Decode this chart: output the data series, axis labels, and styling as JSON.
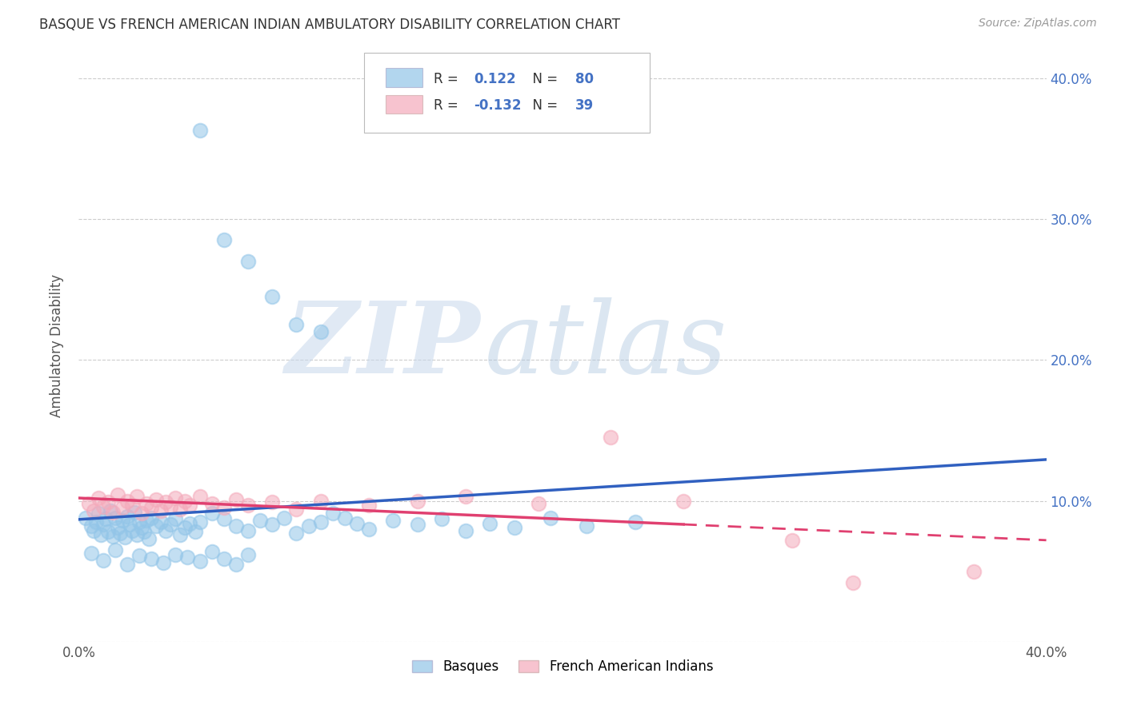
{
  "title": "BASQUE VS FRENCH AMERICAN INDIAN AMBULATORY DISABILITY CORRELATION CHART",
  "source": "Source: ZipAtlas.com",
  "ylabel": "Ambulatory Disability",
  "xlim": [
    0.0,
    0.4
  ],
  "ylim": [
    0.0,
    0.42
  ],
  "grid_color": "#cccccc",
  "background_color": "#ffffff",
  "blue_color": "#92C5E8",
  "pink_color": "#F4AABB",
  "blue_line_color": "#3060C0",
  "pink_line_color": "#E04070",
  "watermark_zip": "ZIP",
  "watermark_atlas": "atlas",
  "legend_label1": "Basques",
  "legend_label2": "French American Indians",
  "blue_x": [
    0.003,
    0.005,
    0.006,
    0.007,
    0.008,
    0.009,
    0.01,
    0.011,
    0.012,
    0.013,
    0.014,
    0.015,
    0.016,
    0.017,
    0.018,
    0.019,
    0.02,
    0.021,
    0.022,
    0.023,
    0.024,
    0.025,
    0.026,
    0.027,
    0.028,
    0.029,
    0.03,
    0.032,
    0.034,
    0.036,
    0.038,
    0.04,
    0.042,
    0.044,
    0.046,
    0.048,
    0.05,
    0.055,
    0.06,
    0.065,
    0.07,
    0.075,
    0.08,
    0.085,
    0.09,
    0.095,
    0.1,
    0.105,
    0.11,
    0.115,
    0.12,
    0.13,
    0.14,
    0.15,
    0.16,
    0.17,
    0.18,
    0.195,
    0.21,
    0.23,
    0.005,
    0.01,
    0.015,
    0.02,
    0.025,
    0.03,
    0.035,
    0.04,
    0.045,
    0.05,
    0.055,
    0.06,
    0.065,
    0.07,
    0.05,
    0.06,
    0.07,
    0.08,
    0.09,
    0.1
  ],
  "blue_y": [
    0.088,
    0.082,
    0.079,
    0.085,
    0.091,
    0.076,
    0.083,
    0.087,
    0.078,
    0.093,
    0.075,
    0.088,
    0.081,
    0.077,
    0.086,
    0.074,
    0.089,
    0.083,
    0.079,
    0.092,
    0.076,
    0.085,
    0.081,
    0.078,
    0.086,
    0.073,
    0.088,
    0.082,
    0.085,
    0.079,
    0.083,
    0.087,
    0.076,
    0.081,
    0.084,
    0.078,
    0.085,
    0.091,
    0.087,
    0.082,
    0.079,
    0.086,
    0.083,
    0.088,
    0.077,
    0.082,
    0.085,
    0.091,
    0.088,
    0.084,
    0.08,
    0.086,
    0.083,
    0.087,
    0.079,
    0.084,
    0.081,
    0.088,
    0.082,
    0.085,
    0.063,
    0.058,
    0.065,
    0.055,
    0.061,
    0.059,
    0.056,
    0.062,
    0.06,
    0.057,
    0.064,
    0.059,
    0.055,
    0.062,
    0.363,
    0.285,
    0.27,
    0.245,
    0.225,
    0.22
  ],
  "pink_x": [
    0.004,
    0.006,
    0.008,
    0.01,
    0.012,
    0.014,
    0.016,
    0.018,
    0.02,
    0.022,
    0.024,
    0.026,
    0.028,
    0.03,
    0.032,
    0.034,
    0.036,
    0.038,
    0.04,
    0.042,
    0.044,
    0.046,
    0.05,
    0.055,
    0.06,
    0.065,
    0.07,
    0.08,
    0.09,
    0.1,
    0.12,
    0.14,
    0.16,
    0.19,
    0.22,
    0.25,
    0.295,
    0.32,
    0.37
  ],
  "pink_y": [
    0.098,
    0.093,
    0.102,
    0.096,
    0.099,
    0.092,
    0.104,
    0.095,
    0.1,
    0.097,
    0.103,
    0.091,
    0.098,
    0.095,
    0.101,
    0.093,
    0.099,
    0.096,
    0.102,
    0.094,
    0.1,
    0.097,
    0.103,
    0.098,
    0.095,
    0.101,
    0.097,
    0.099,
    0.094,
    0.1,
    0.097,
    0.1,
    0.103,
    0.098,
    0.145,
    0.1,
    0.072,
    0.042,
    0.05
  ],
  "blue_intercept": 0.082,
  "blue_slope": 0.02,
  "pink_intercept": 0.097,
  "pink_slope": -0.06
}
